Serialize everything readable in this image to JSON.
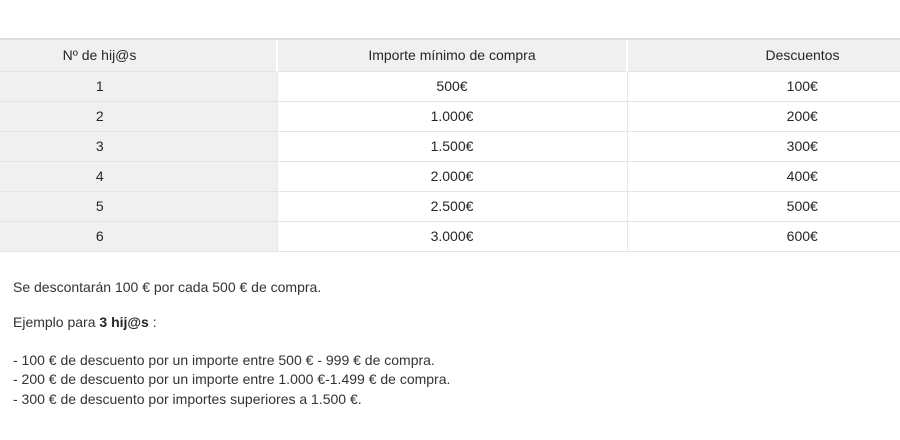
{
  "theme": {
    "page_background": "#ffffff",
    "header_background": "#f0f0f0",
    "row_header_background": "#f0f0f0",
    "cell_background": "#ffffff",
    "top_border_color": "#dcdcdc",
    "grid_border_color": "#e4e4e4",
    "text_color": "#262626"
  },
  "table": {
    "columns": [
      "Nº de hij@s",
      "Importe mínimo de compra",
      "Descuentos"
    ],
    "rows": [
      {
        "hijos": "1",
        "importe": "500€",
        "descuento": "100€"
      },
      {
        "hijos": "2",
        "importe": "1.000€",
        "descuento": "200€"
      },
      {
        "hijos": "3",
        "importe": "1.500€",
        "descuento": "300€"
      },
      {
        "hijos": "4",
        "importe": "2.000€",
        "descuento": "400€"
      },
      {
        "hijos": "5",
        "importe": "2.500€",
        "descuento": "500€"
      },
      {
        "hijos": "6",
        "importe": "3.000€",
        "descuento": "600€"
      }
    ]
  },
  "notes": {
    "summary": "Se descontarán 100 € por cada 500 € de compra.",
    "example_prefix": "Ejemplo para ",
    "example_bold": "3 hij@s",
    "example_suffix": " :",
    "bullets": [
      "- 100 € de descuento por un importe entre 500 € - 999 € de compra.",
      "- 200 € de descuento por un importe entre 1.000 €-1.499 € de compra.",
      "- 300 € de descuento por importes superiores a 1.500 €."
    ]
  }
}
